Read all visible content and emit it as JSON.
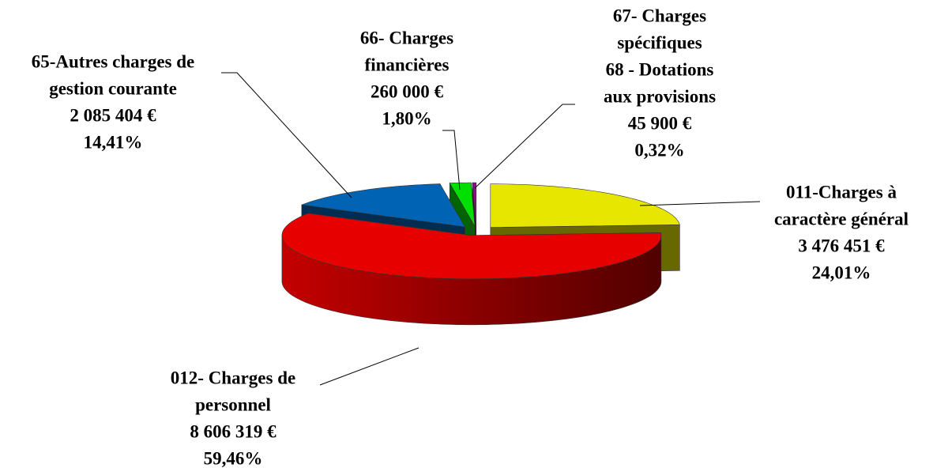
{
  "chart_data": {
    "type": "pie",
    "categories": [
      [
        "011-Charges à",
        "caractère général"
      ],
      [
        "012- Charges de",
        "personnel"
      ],
      [
        "65-Autres charges de",
        "gestion courante"
      ],
      [
        "66- Charges",
        "financières"
      ],
      [
        "67- Charges",
        "spécifiques",
        "68 - Dotations",
        "aux provisions"
      ]
    ],
    "values": [
      3476451,
      8606319,
      2085404,
      260000,
      45900
    ],
    "value_labels": [
      "3 476 451 €",
      "8 606 319 €",
      "2 085 404 €",
      "260 000 €",
      "45 900 €"
    ],
    "percentages": [
      24.01,
      59.46,
      14.41,
      1.8,
      0.32
    ],
    "percentage_labels": [
      "24,01%",
      "59,46%",
      "14,41%",
      "1,80%",
      "0,32%"
    ],
    "colors": [
      "#e6e600",
      "#e60000",
      "#0063b4",
      "#00e000",
      "#8a0a8a"
    ]
  }
}
